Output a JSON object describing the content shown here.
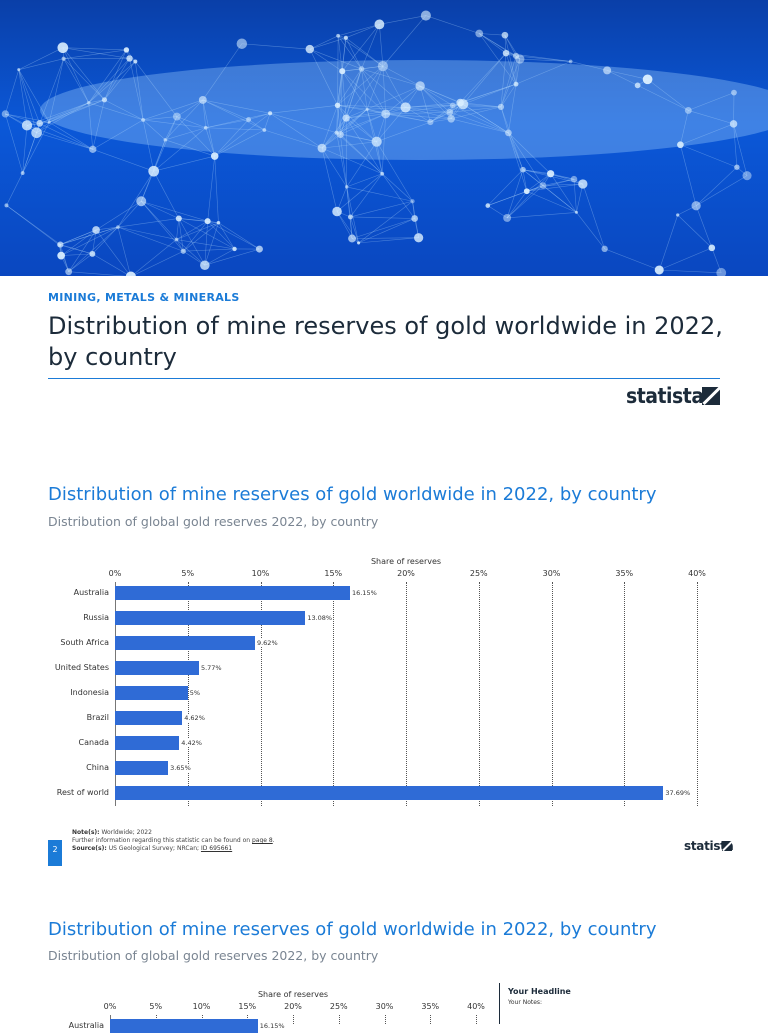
{
  "header": {
    "category": "MINING, METALS & MINERALS",
    "title": "Distribution of mine reserves of gold worldwide in 2022, by country",
    "logo": "statista"
  },
  "section1": {
    "title": "Distribution of mine reserves of gold worldwide in 2022, by country",
    "subtitle": "Distribution of global gold reserves 2022, by country",
    "notes": {
      "note_label": "Note(s):",
      "note_text": "Worldwide; 2022",
      "further": "Further information regarding this statistic can be found on",
      "page_link": "page 8",
      "source_label": "Source(s):",
      "source_text": "US Geological Survey; NRCan;",
      "id_link": "ID 695661"
    },
    "page_number": "2",
    "logo": "statista"
  },
  "section2": {
    "title": "Distribution of mine reserves of gold worldwide in 2022, by country",
    "subtitle": "Distribution of global gold reserves 2022, by country",
    "headline": "Your Headline",
    "headline_notes": "Your Notes:"
  },
  "chart_data": [
    {
      "type": "bar",
      "orientation": "horizontal",
      "xlabel": "Share of reserves",
      "xlim": [
        0,
        40
      ],
      "ticks": [
        "0%",
        "5%",
        "10%",
        "15%",
        "20%",
        "25%",
        "30%",
        "35%",
        "40%"
      ],
      "grid": true,
      "categories": [
        "Australia",
        "Russia",
        "South Africa",
        "United States",
        "Indonesia",
        "Brazil",
        "Canada",
        "China",
        "Rest of world"
      ],
      "values": [
        16.15,
        13.08,
        9.62,
        5.77,
        5,
        4.62,
        4.42,
        3.65,
        37.69
      ],
      "labels": [
        "16.15%",
        "13.08%",
        "9.62%",
        "5.77%",
        "5%",
        "4.62%",
        "4.42%",
        "3.65%",
        "37.69%"
      ]
    },
    {
      "type": "bar",
      "orientation": "horizontal",
      "xlabel": "Share of reserves",
      "xlim": [
        0,
        40
      ],
      "ticks": [
        "0%",
        "5%",
        "10%",
        "15%",
        "20%",
        "25%",
        "30%",
        "35%",
        "40%"
      ],
      "grid": true,
      "categories": [
        "Australia"
      ],
      "values": [
        16.15
      ],
      "labels": [
        "16.15%"
      ]
    }
  ]
}
